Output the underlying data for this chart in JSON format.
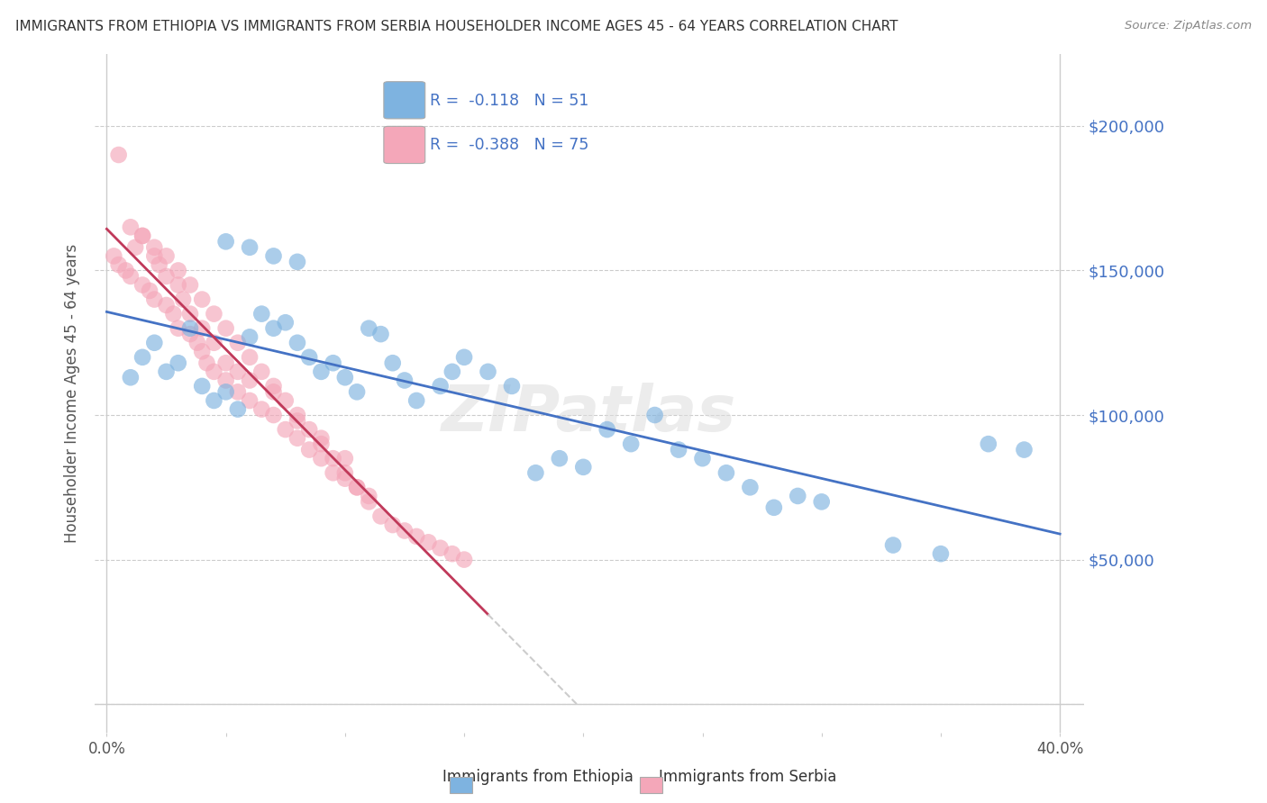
{
  "title": "IMMIGRANTS FROM ETHIOPIA VS IMMIGRANTS FROM SERBIA HOUSEHOLDER INCOME AGES 45 - 64 YEARS CORRELATION CHART",
  "source": "Source: ZipAtlas.com",
  "ylabel": "Householder Income Ages 45 - 64 years",
  "color_ethiopia": "#7EB3E0",
  "color_serbia": "#F4A7B9",
  "color_trendline_ethiopia": "#4472C4",
  "color_trendline_serbia": "#C0395A",
  "color_trendline_serbia_ext": "#CCCCCC",
  "watermark": "ZIPatlas",
  "legend_label1": "Immigrants from Ethiopia",
  "legend_label2": "Immigrants from Serbia",
  "ethiopia_x": [
    1.0,
    1.5,
    2.0,
    2.5,
    3.0,
    3.5,
    4.0,
    4.5,
    5.0,
    5.5,
    6.0,
    6.5,
    7.0,
    7.5,
    8.0,
    8.5,
    9.0,
    9.5,
    10.0,
    10.5,
    11.0,
    11.5,
    12.0,
    12.5,
    13.0,
    14.0,
    14.5,
    15.0,
    16.0,
    17.0,
    18.0,
    19.0,
    20.0,
    21.0,
    22.0,
    23.0,
    24.0,
    25.0,
    26.0,
    27.0,
    28.0,
    29.0,
    30.0,
    33.0,
    35.0,
    37.0,
    38.5,
    5.0,
    6.0,
    7.0,
    8.0
  ],
  "ethiopia_y": [
    113000,
    120000,
    125000,
    115000,
    118000,
    130000,
    110000,
    105000,
    108000,
    102000,
    127000,
    135000,
    130000,
    132000,
    125000,
    120000,
    115000,
    118000,
    113000,
    108000,
    130000,
    128000,
    118000,
    112000,
    105000,
    110000,
    115000,
    120000,
    115000,
    110000,
    80000,
    85000,
    82000,
    95000,
    90000,
    100000,
    88000,
    85000,
    80000,
    75000,
    68000,
    72000,
    70000,
    55000,
    52000,
    90000,
    88000,
    160000,
    158000,
    155000,
    153000
  ],
  "serbia_x": [
    0.3,
    0.5,
    0.8,
    1.0,
    1.2,
    1.5,
    1.5,
    1.8,
    2.0,
    2.0,
    2.2,
    2.5,
    2.5,
    2.8,
    3.0,
    3.0,
    3.2,
    3.5,
    3.5,
    3.8,
    4.0,
    4.0,
    4.2,
    4.5,
    4.5,
    5.0,
    5.0,
    5.5,
    5.5,
    6.0,
    6.0,
    6.5,
    7.0,
    7.0,
    7.5,
    8.0,
    8.0,
    8.5,
    9.0,
    9.0,
    9.5,
    10.0,
    10.0,
    10.5,
    11.0,
    1.0,
    1.5,
    2.0,
    2.5,
    3.0,
    3.5,
    4.0,
    4.5,
    5.0,
    5.5,
    6.0,
    6.5,
    7.0,
    7.5,
    8.0,
    8.5,
    9.0,
    9.5,
    10.0,
    10.5,
    11.0,
    11.5,
    12.0,
    12.5,
    13.0,
    13.5,
    14.0,
    14.5,
    15.0,
    0.5
  ],
  "serbia_y": [
    155000,
    152000,
    150000,
    148000,
    158000,
    162000,
    145000,
    143000,
    140000,
    155000,
    152000,
    148000,
    138000,
    135000,
    130000,
    145000,
    140000,
    135000,
    128000,
    125000,
    122000,
    130000,
    118000,
    115000,
    125000,
    112000,
    118000,
    108000,
    115000,
    105000,
    112000,
    102000,
    100000,
    108000,
    95000,
    92000,
    98000,
    88000,
    85000,
    92000,
    80000,
    78000,
    85000,
    75000,
    72000,
    165000,
    162000,
    158000,
    155000,
    150000,
    145000,
    140000,
    135000,
    130000,
    125000,
    120000,
    115000,
    110000,
    105000,
    100000,
    95000,
    90000,
    85000,
    80000,
    75000,
    70000,
    65000,
    62000,
    60000,
    58000,
    56000,
    54000,
    52000,
    50000,
    190000
  ]
}
